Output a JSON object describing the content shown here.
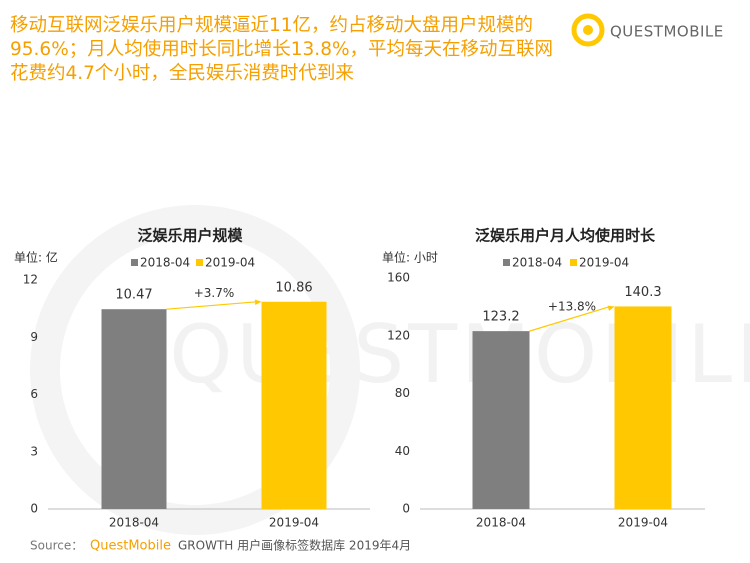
{
  "header": {
    "title_lines": [
      "移动互联网泛娱乐用户规模逼近11亿，约占移动大盘用户规模的",
      "95.6%；月人均使用时长同比增长13.8%，平均每天在移动互联网",
      "花费约4.7个小时，全民娱乐消费时代到来"
    ]
  },
  "logo": {
    "text": "QUESTMOBILE"
  },
  "chart_data": [
    {
      "type": "bar",
      "title": "泛娱乐用户规模",
      "unit": "单位: 亿",
      "categories": [
        "2018-04",
        "2019-04"
      ],
      "values": [
        10.47,
        10.86
      ],
      "colors": [
        "#7f7f7f",
        "#ffc800"
      ],
      "ylim": [
        0,
        12
      ],
      "yticks": [
        0,
        3,
        6,
        9,
        12
      ],
      "annotation": "+3.7%",
      "legend": true
    },
    {
      "type": "bar",
      "title": "泛娱乐用户月人均使用时长",
      "unit": "单位: 小时",
      "categories": [
        "2018-04",
        "2019-04"
      ],
      "values": [
        123.2,
        140.3
      ],
      "colors": [
        "#7f7f7f",
        "#ffc800"
      ],
      "ylim": [
        0,
        160
      ],
      "yticks": [
        0,
        40,
        80,
        120,
        160
      ],
      "annotation": "+13.8%",
      "legend": true
    }
  ],
  "source": {
    "label": "Source：",
    "brand": "QuestMobile",
    "text": "GROWTH 用户画像标签数据库 2019年4月"
  }
}
